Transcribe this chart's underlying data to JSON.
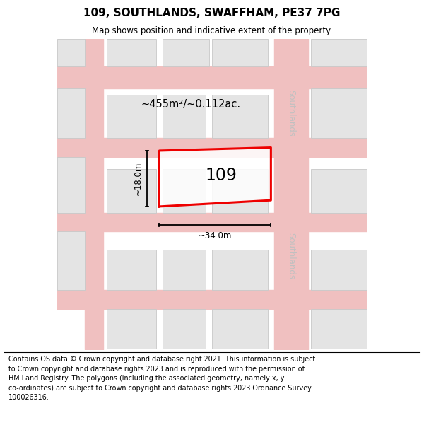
{
  "title": "109, SOUTHLANDS, SWAFFHAM, PE37 7PG",
  "subtitle": "Map shows position and indicative extent of the property.",
  "footer_line1": "Contains OS data © Crown copyright and database right 2021. This information is subject",
  "footer_line2": "to Crown copyright and database rights 2023 and is reproduced with the permission of",
  "footer_line3": "HM Land Registry. The polygons (including the associated geometry, namely x, y",
  "footer_line4": "co-ordinates) are subject to Crown copyright and database rights 2023 Ordnance Survey",
  "footer_line5": "100026316.",
  "bg_color": "#ffffff",
  "map_bg": "#f2f2f2",
  "road_color": "#f0c0c0",
  "building_fill": "#e4e4e4",
  "building_edge": "#c8c8c8",
  "highlight_color": "#ee0000",
  "road_label_color": "#c0c0c0",
  "area_label": "~455m²/~0.112ac.",
  "width_label": "~34.0m",
  "height_label": "~18.0m",
  "plot_label": "109",
  "road_name": "Southlands"
}
